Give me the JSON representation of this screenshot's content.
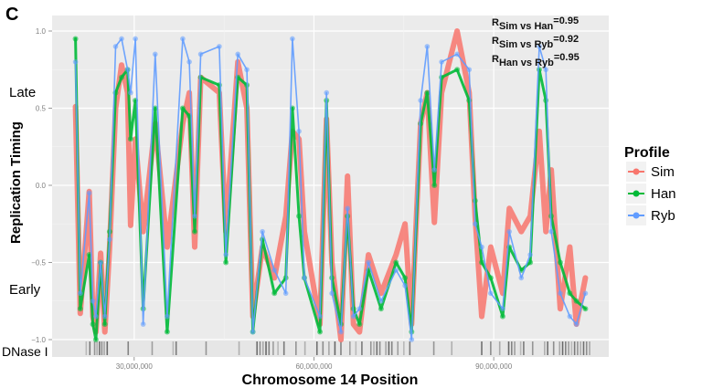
{
  "panel_label": "C",
  "chart_data": {
    "type": "line",
    "title": "",
    "xlabel": "Chromosome 14 Position",
    "ylabel": "Replication Timing",
    "xlim": [
      16300000,
      109200000
    ],
    "ylim": [
      -1.0,
      1.0
    ],
    "x_ticks": [
      30000000,
      60000000,
      90000000
    ],
    "x_tick_labels": [
      "30,000,000",
      "60,000,000",
      "90,000,000"
    ],
    "y_ticks": [
      -1.0,
      -0.5,
      0.0,
      0.5,
      1.0
    ],
    "y_tick_labels": [
      "-1.0",
      "-0.5",
      "0.0",
      "0.5",
      "1.0"
    ],
    "y_annotations": {
      "late": "Late",
      "early": "Early"
    },
    "track_label": "DNase I",
    "grid": true,
    "legend": {
      "title": "Profile",
      "placement": "right"
    },
    "correlations": [
      {
        "prefix": "R",
        "sub": "Sim vs Han",
        "value": "=0.95"
      },
      {
        "prefix": "R",
        "sub": "Sim vs Ryb",
        "value": "=0.92"
      },
      {
        "prefix": "R",
        "sub": "Han vs Ryb",
        "value": "=0.95"
      }
    ],
    "x": [
      20.2,
      21.0,
      22.5,
      23.1,
      23.6,
      24.4,
      25.1,
      25.9,
      26.9,
      27.9,
      28.9,
      29.4,
      30.2,
      31.5,
      33.5,
      35.5,
      38.1,
      39.2,
      40.1,
      41.1,
      44.2,
      45.3,
      47.3,
      48.8,
      49.8,
      51.4,
      53.4,
      55.3,
      56.4,
      57.5,
      58.4,
      61.0,
      62.1,
      63.0,
      64.5,
      65.6,
      66.6,
      67.6,
      69.1,
      71.2,
      73.7,
      75.2,
      76.3,
      77.8,
      78.9,
      80.1,
      81.3,
      83.9,
      85.9,
      86.9,
      88.0,
      89.5,
      91.5,
      92.6,
      94.6,
      96.1,
      97.6,
      98.7,
      99.6,
      101.1,
      102.7,
      103.8,
      105.3
    ],
    "x_unit_multiplier": 1000000,
    "series": [
      {
        "name": "Sim",
        "color": "#f8766d",
        "values": [
          0.51,
          -0.83,
          -0.04,
          -0.85,
          -0.95,
          -0.44,
          -0.95,
          -0.4,
          0.5,
          0.78,
          0.6,
          -0.26,
          0.3,
          -0.3,
          0.4,
          -0.4,
          0.4,
          0.6,
          -0.4,
          0.7,
          0.6,
          -0.3,
          0.8,
          0.5,
          -0.85,
          -0.4,
          -0.6,
          -0.2,
          0.35,
          0.3,
          -0.3,
          -0.9,
          0.43,
          -0.5,
          -1.0,
          0.06,
          -0.9,
          -0.95,
          -0.45,
          -0.7,
          -0.45,
          -0.25,
          -0.9,
          0.4,
          0.6,
          -0.24,
          0.6,
          1.0,
          0.6,
          -0.2,
          -0.85,
          -0.4,
          -0.7,
          -0.15,
          -0.3,
          -0.2,
          0.35,
          -0.3,
          0.1,
          -0.8,
          -0.4,
          -0.9,
          -0.6
        ]
      },
      {
        "name": "Han",
        "color": "#00ba38",
        "values": [
          0.95,
          -0.8,
          -0.45,
          -0.9,
          -1.0,
          -0.5,
          -0.9,
          -0.3,
          0.6,
          0.7,
          0.75,
          0.3,
          0.55,
          -0.8,
          0.5,
          -0.95,
          0.5,
          0.45,
          -0.3,
          0.7,
          0.65,
          -0.5,
          0.7,
          0.65,
          -0.95,
          -0.35,
          -0.7,
          -0.6,
          0.5,
          -0.2,
          -0.6,
          -0.95,
          0.55,
          -0.6,
          -0.9,
          -0.2,
          -0.8,
          -0.9,
          -0.55,
          -0.8,
          -0.5,
          -0.6,
          -0.95,
          0.4,
          0.6,
          0.0,
          0.7,
          0.75,
          0.55,
          -0.1,
          -0.5,
          -0.6,
          -0.85,
          -0.4,
          -0.55,
          -0.5,
          0.75,
          0.55,
          -0.2,
          -0.5,
          -0.7,
          -0.75,
          -0.8
        ]
      },
      {
        "name": "Ryb",
        "color": "#619cff",
        "values": [
          0.8,
          -0.7,
          -0.05,
          -0.75,
          -0.85,
          -0.5,
          -0.85,
          -0.35,
          0.9,
          0.95,
          0.75,
          0.6,
          0.95,
          -0.9,
          0.85,
          -0.85,
          0.95,
          0.8,
          -0.2,
          0.85,
          0.9,
          -0.45,
          0.85,
          0.75,
          -0.95,
          -0.3,
          -0.55,
          -0.7,
          0.95,
          0.35,
          -0.6,
          -0.85,
          0.6,
          -0.7,
          -0.95,
          -0.15,
          -0.85,
          -0.8,
          -0.5,
          -0.75,
          -0.55,
          -0.65,
          -1.0,
          0.55,
          0.9,
          0.1,
          0.8,
          0.85,
          0.75,
          -0.25,
          -0.4,
          -0.7,
          -0.8,
          -0.3,
          -0.6,
          -0.45,
          0.9,
          0.75,
          -0.3,
          -0.7,
          -0.85,
          -0.9,
          -0.7
        ]
      }
    ],
    "dnase_sites": [
      22.0,
      22.6,
      23.4,
      23.8,
      24.2,
      24.6,
      25.0,
      25.5,
      29.0,
      33.0,
      36.5,
      37.0,
      42.0,
      47.5,
      50.5,
      51.0,
      51.5,
      52.0,
      52.5,
      53.2,
      54.0,
      55.0,
      57.0,
      58.5,
      60.5,
      61.5,
      62.5,
      63.5,
      64.5,
      66.0,
      67.0,
      68.0,
      69.5,
      70.0,
      70.5,
      71.0,
      72.0,
      72.5,
      73.0,
      74.0,
      75.0,
      76.0,
      80.0,
      83.0,
      88.0,
      89.5,
      91.0,
      92.5,
      93.0,
      93.5,
      94.5,
      95.0,
      96.5,
      98.5,
      99.0,
      100.0,
      101.0,
      101.5,
      102.0,
      102.5,
      103.0,
      103.5,
      104.0,
      104.5,
      105.0,
      105.5,
      106.0
    ]
  }
}
